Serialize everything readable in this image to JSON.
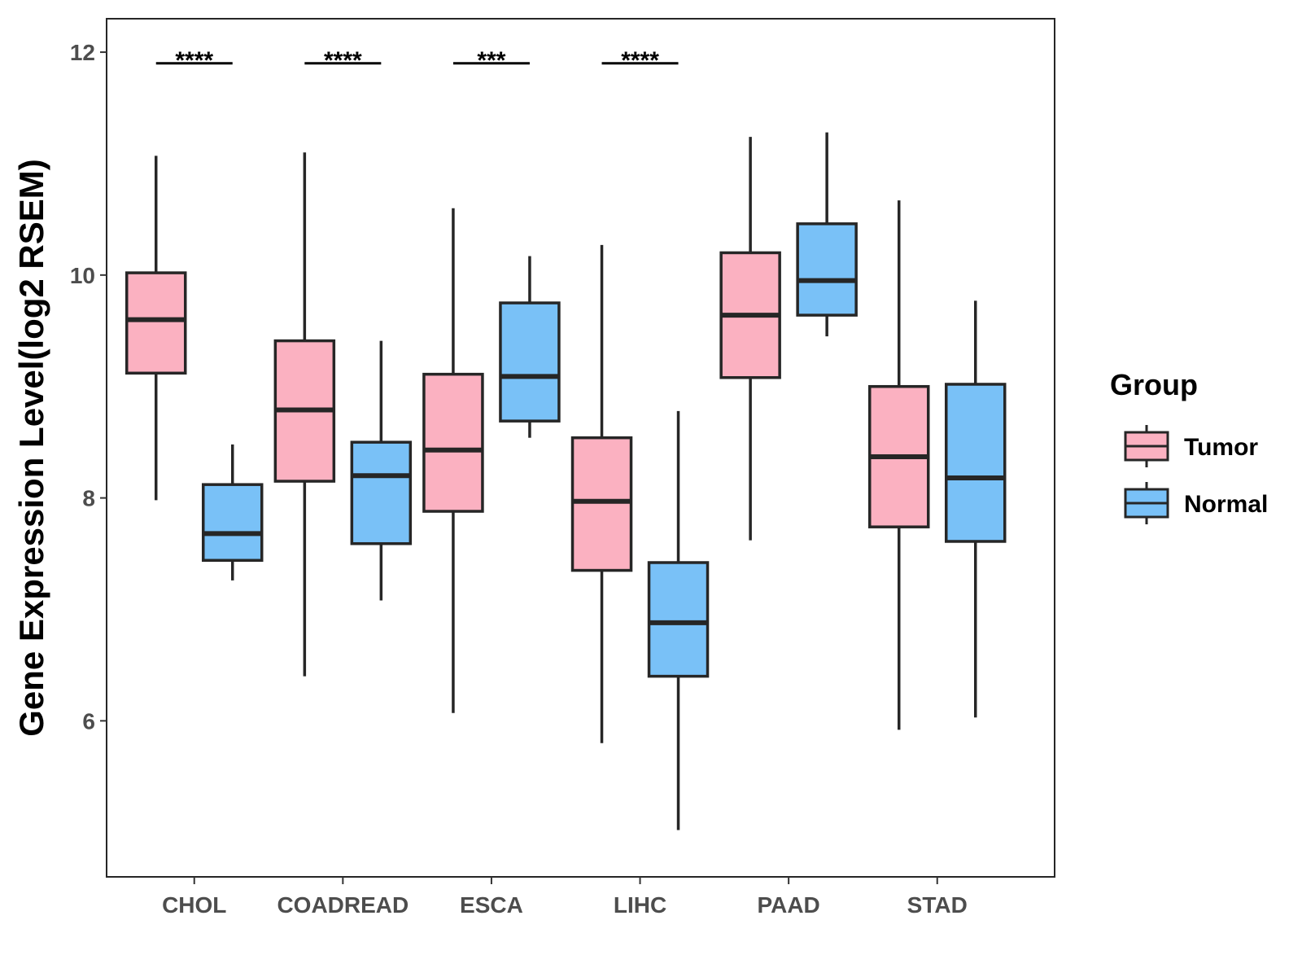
{
  "chart_data": {
    "type": "boxplot",
    "title": "",
    "xlabel": "",
    "ylabel": "Gene Expression Level(log2 RSEM)",
    "ylim": [
      4.6,
      12.3
    ],
    "yticks": [
      6,
      8,
      10,
      12
    ],
    "yticklabels": [
      "6",
      "8",
      "10",
      "12"
    ],
    "categories": [
      "CHOL",
      "COADREAD",
      "ESCA",
      "LIHC",
      "PAAD",
      "STAD"
    ],
    "legend": {
      "title": "Group",
      "position": "right",
      "entries": [
        {
          "name": "Tumor",
          "color": "#fbb1c1"
        },
        {
          "name": "Normal",
          "color": "#79c1f7"
        }
      ]
    },
    "series": [
      {
        "name": "Tumor",
        "color": "#fbb1c1",
        "boxes": [
          {
            "category": "CHOL",
            "min": 7.98,
            "q1": 9.12,
            "median": 9.6,
            "q3": 10.02,
            "max": 11.07
          },
          {
            "category": "COADREAD",
            "min": 6.4,
            "q1": 8.15,
            "median": 8.79,
            "q3": 9.41,
            "max": 11.1
          },
          {
            "category": "ESCA",
            "min": 6.07,
            "q1": 7.88,
            "median": 8.43,
            "q3": 9.11,
            "max": 10.6
          },
          {
            "category": "LIHC",
            "min": 5.8,
            "q1": 7.35,
            "median": 7.97,
            "q3": 8.54,
            "max": 10.27
          },
          {
            "category": "PAAD",
            "min": 7.62,
            "q1": 9.08,
            "median": 9.64,
            "q3": 10.2,
            "max": 11.24
          },
          {
            "category": "STAD",
            "min": 5.92,
            "q1": 7.74,
            "median": 8.37,
            "q3": 9.0,
            "max": 10.67
          }
        ]
      },
      {
        "name": "Normal",
        "color": "#79c1f7",
        "boxes": [
          {
            "category": "CHOL",
            "min": 7.26,
            "q1": 7.44,
            "median": 7.68,
            "q3": 8.12,
            "max": 8.48
          },
          {
            "category": "COADREAD",
            "min": 7.08,
            "q1": 7.59,
            "median": 8.2,
            "q3": 8.5,
            "max": 9.41
          },
          {
            "category": "ESCA",
            "min": 8.54,
            "q1": 8.69,
            "median": 9.09,
            "q3": 9.75,
            "max": 10.17
          },
          {
            "category": "LIHC",
            "min": 5.02,
            "q1": 6.4,
            "median": 6.88,
            "q3": 7.42,
            "max": 8.78
          },
          {
            "category": "PAAD",
            "min": 9.45,
            "q1": 9.64,
            "median": 9.95,
            "q3": 10.46,
            "max": 11.28
          },
          {
            "category": "STAD",
            "min": 6.03,
            "q1": 7.61,
            "median": 8.18,
            "q3": 9.02,
            "max": 9.77
          }
        ]
      }
    ],
    "annotations": [
      {
        "category": "CHOL",
        "text": "****"
      },
      {
        "category": "COADREAD",
        "text": "****"
      },
      {
        "category": "ESCA",
        "text": "***"
      },
      {
        "category": "LIHC",
        "text": "****"
      }
    ],
    "annotation_level": 11.9,
    "styles": {
      "box_stroke": "#262626",
      "panel_border": "#262626",
      "tick_color": "#333333"
    }
  }
}
